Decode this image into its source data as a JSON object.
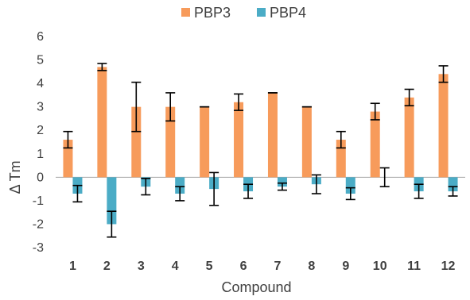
{
  "chart_data": {
    "type": "bar",
    "title": "",
    "xlabel": "Compound",
    "ylabel": "Δ Tm",
    "ylim": [
      -3,
      6
    ],
    "yticks": [
      -3,
      -2,
      -1,
      0,
      1,
      2,
      3,
      4,
      5,
      6
    ],
    "grid": false,
    "legend": "top",
    "categories": [
      "1",
      "2",
      "3",
      "4",
      "5",
      "6",
      "7",
      "8",
      "9",
      "10",
      "11",
      "12"
    ],
    "series": [
      {
        "name": "PBP3",
        "color": "#F79B5B",
        "values": [
          1.6,
          4.7,
          3.0,
          3.0,
          3.0,
          3.2,
          3.6,
          3.0,
          1.6,
          2.8,
          3.4,
          4.4
        ],
        "errors": [
          0.35,
          0.15,
          1.05,
          0.6,
          0.0,
          0.35,
          0.0,
          0.0,
          0.35,
          0.35,
          0.35,
          0.35
        ]
      },
      {
        "name": "PBP4",
        "color": "#4BACC6",
        "values": [
          -0.7,
          -2.0,
          -0.4,
          -0.7,
          -0.5,
          -0.6,
          -0.4,
          -0.3,
          -0.7,
          0.0,
          -0.6,
          -0.6
        ],
        "errors": [
          0.35,
          0.55,
          0.35,
          0.3,
          0.7,
          0.3,
          0.15,
          0.4,
          0.25,
          0.4,
          0.3,
          0.2
        ]
      }
    ]
  }
}
